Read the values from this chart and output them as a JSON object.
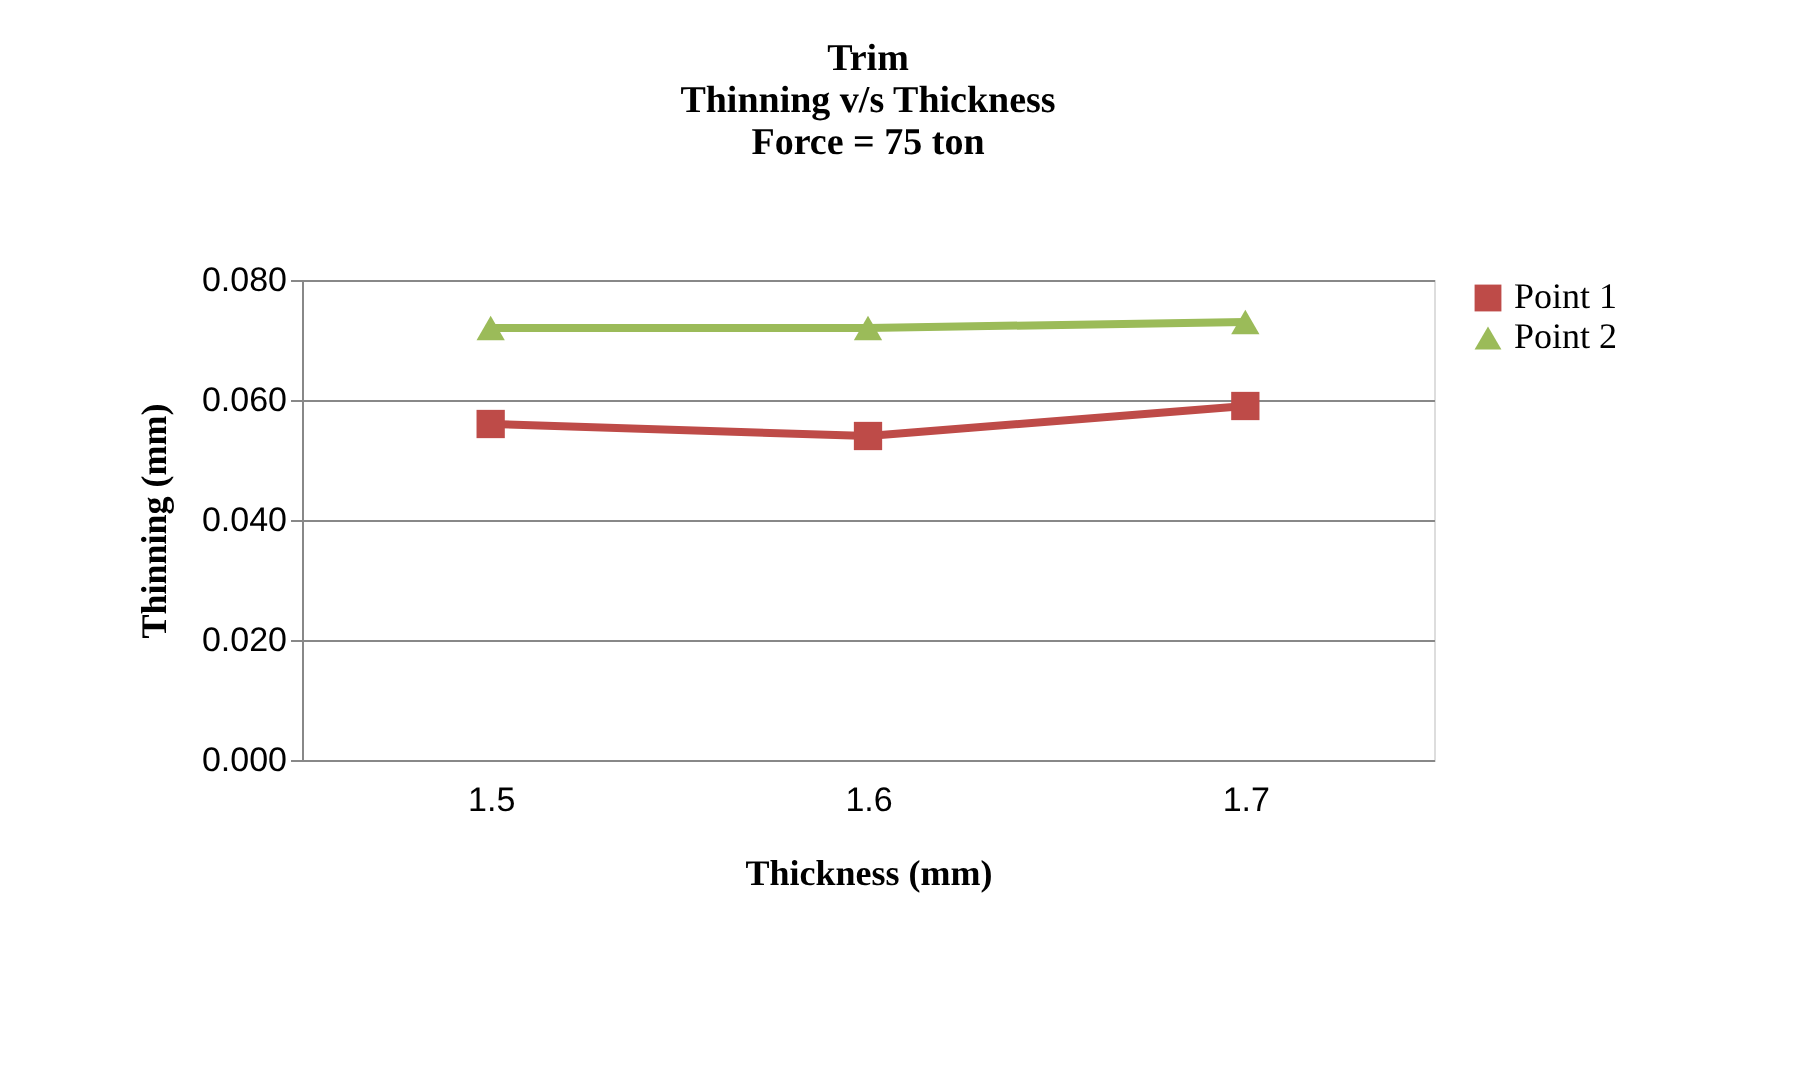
{
  "chart_data": {
    "type": "line",
    "title": "Trim\nThinning v/s Thickness\nForce = 75 ton",
    "xlabel": "Thickness (mm)",
    "ylabel": "Thinning (mm)",
    "categories": [
      "1.5",
      "1.6",
      "1.7"
    ],
    "series": [
      {
        "name": "Point 1",
        "color": "#be4b48",
        "marker": "square",
        "values": [
          0.056,
          0.054,
          0.059
        ]
      },
      {
        "name": "Point 2",
        "color": "#9bbb59",
        "marker": "triangle",
        "values": [
          0.072,
          0.072,
          0.073
        ]
      }
    ],
    "ylim": [
      0,
      0.08
    ],
    "yticks": [
      {
        "value": 0,
        "label": "0.000"
      },
      {
        "value": 0.02,
        "label": "0.020"
      },
      {
        "value": 0.04,
        "label": "0.040"
      },
      {
        "value": 0.06,
        "label": "0.060"
      },
      {
        "value": 0.08,
        "label": "0.080"
      }
    ],
    "grid": "y",
    "legend": "right",
    "line_style": "solid"
  }
}
